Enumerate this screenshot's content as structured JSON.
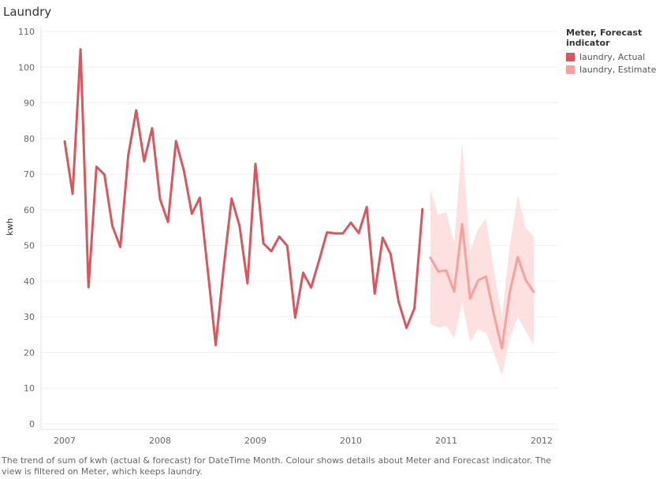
{
  "page": {
    "title": "Laundry",
    "caption": "The trend of sum of kwh (actual & forecast)  for DateTime Month.  Colour shows details about Meter and Forecast indicator. The view is filtered on Meter, which keeps laundry."
  },
  "legend": {
    "title": "Meter, Forecast indicator",
    "items": [
      {
        "label": "laundry, Actual",
        "color": "#d9575c"
      },
      {
        "label": "laundry, Estimate",
        "color": "#f9a09b"
      }
    ]
  },
  "chart_data": {
    "type": "line",
    "ylabel": "kwh",
    "xlabel": "",
    "ylim": [
      0,
      110
    ],
    "yticks": [
      0,
      10,
      20,
      30,
      40,
      50,
      60,
      70,
      80,
      90,
      100,
      110
    ],
    "xticks": [
      "2007",
      "2008",
      "2009",
      "2010",
      "2011",
      "2012"
    ],
    "grid": "horizontal",
    "series": [
      {
        "name": "laundry, Actual",
        "color": "#d9575c",
        "x": [
          "2007-01",
          "2007-02",
          "2007-03",
          "2007-04",
          "2007-05",
          "2007-06",
          "2007-07",
          "2007-08",
          "2007-09",
          "2007-10",
          "2007-11",
          "2007-12",
          "2008-01",
          "2008-02",
          "2008-03",
          "2008-04",
          "2008-05",
          "2008-06",
          "2008-07",
          "2008-08",
          "2008-09",
          "2008-10",
          "2008-11",
          "2008-12",
          "2009-01",
          "2009-02",
          "2009-03",
          "2009-04",
          "2009-05",
          "2009-06",
          "2009-07",
          "2009-08",
          "2009-09",
          "2009-10",
          "2009-11",
          "2009-12",
          "2010-01",
          "2010-02",
          "2010-03",
          "2010-04",
          "2010-05",
          "2010-06",
          "2010-07",
          "2010-08",
          "2010-09",
          "2010-10"
        ],
        "values": [
          79.2,
          64.5,
          105,
          38.3,
          72.1,
          69.9,
          55.5,
          49.6,
          75.3,
          87.9,
          73.6,
          82.9,
          63.0,
          56.6,
          79.3,
          71.0,
          58.9,
          63.4,
          43.1,
          22.1,
          43.7,
          63.2,
          55.5,
          39.4,
          72.9,
          50.6,
          48.4,
          52.5,
          49.9,
          29.8,
          42.4,
          38.2,
          45.8,
          53.7,
          53.4,
          53.4,
          56.4,
          53.5,
          60.8,
          36.5,
          52.2,
          47.6,
          34.3,
          26.9,
          32.4,
          60.2
        ]
      },
      {
        "name": "laundry, Estimate",
        "color": "#f9a09b",
        "band_color": "#fde0e0",
        "x": [
          "2010-11",
          "2010-12",
          "2011-01",
          "2011-02",
          "2011-03",
          "2011-04",
          "2011-05",
          "2011-06",
          "2011-07",
          "2011-08",
          "2011-09",
          "2011-10",
          "2011-11",
          "2011-12"
        ],
        "values": [
          46.6,
          42.7,
          43.0,
          37.1,
          56.0,
          35.1,
          40.2,
          41.3,
          30.6,
          21.2,
          37.0,
          46.8,
          40.3,
          37.0
        ],
        "lower": [
          28.0,
          27.0,
          27.5,
          24.0,
          34.0,
          23.0,
          26.5,
          25.5,
          20.0,
          13.5,
          24.0,
          30.0,
          26.0,
          22.0
        ],
        "upper": [
          65.5,
          58.5,
          59.5,
          50.5,
          79.0,
          48.5,
          54.5,
          57.5,
          43.0,
          30.0,
          50.0,
          64.0,
          55.0,
          52.5
        ]
      }
    ]
  }
}
